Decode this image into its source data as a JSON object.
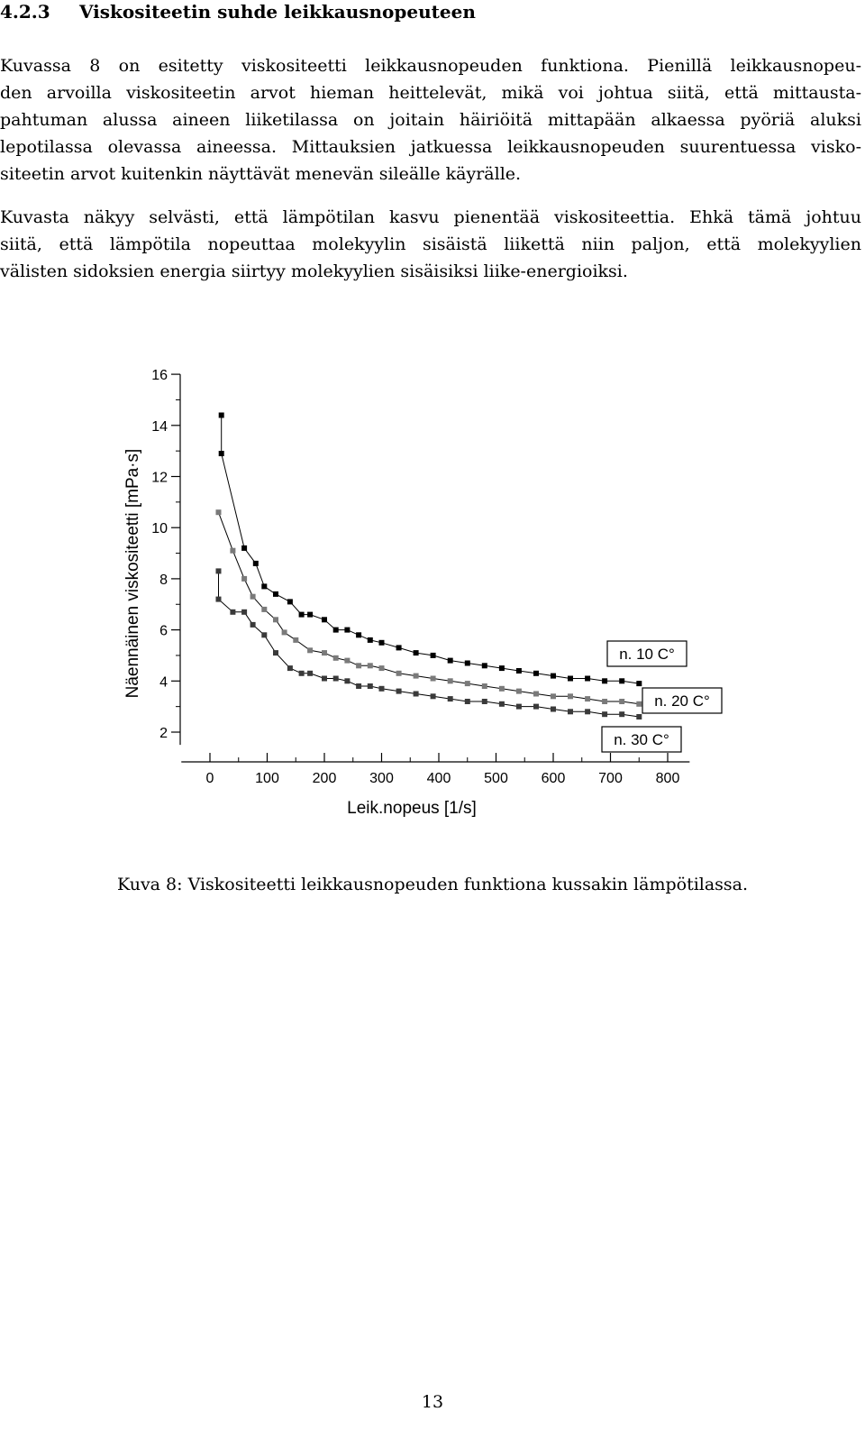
{
  "section": {
    "number": "4.2.3",
    "title": "Viskositeetin suhde leikkausnopeuteen"
  },
  "paragraphs": [
    {
      "lines": [
        "Kuvassa 8 on esitetty viskositeetti leikkausnopeuden funktiona. Pienillä leikkausnopeu-",
        "den arvoilla viskositeetin arvot hieman heittelevät, mikä voi johtua siitä, että mittausta-",
        "pahtuman alussa aineen liiketilassa on joitain häiriöitä mittapään alkaessa pyöriä aluksi",
        "lepotilassa olevassa aineessa. Mittauksien jatkuessa leikkausnopeuden suurentuessa visko-",
        "siteetin arvot kuitenkin näyttävät menevän sileälle käyrälle."
      ]
    },
    {
      "lines": [
        "Kuvasta näkyy selvästi, että lämpötilan kasvu pienentää viskositeettia. Ehkä tämä johtuu",
        "siitä, että lämpötila nopeuttaa molekyylin sisäistä liikettä niin paljon, että molekyylien",
        "välisten sidoksien energia siirtyy molekyylien sisäisiksi liike-energioiksi."
      ]
    }
  ],
  "chart_data": {
    "type": "line",
    "xlabel": "Leik.nopeus [1/s]",
    "ylabel": "Näennäinen viskositeetti [mPa·s]",
    "xlim": [
      -50,
      810
    ],
    "ylim": [
      1.5,
      16
    ],
    "xticks": [
      0,
      100,
      200,
      300,
      400,
      500,
      600,
      700,
      800
    ],
    "yticks": [
      2,
      4,
      6,
      8,
      10,
      12,
      14,
      16
    ],
    "grid": false,
    "legend": "labels placed at the right end of each curve",
    "series": [
      {
        "name": "n. 10 C°",
        "color": "#000000",
        "x": [
          20,
          20,
          60,
          80,
          95,
          115,
          140,
          160,
          175,
          200,
          220,
          240,
          260,
          280,
          300,
          330,
          360,
          390,
          420,
          450,
          480,
          510,
          540,
          570,
          600,
          630,
          660,
          690,
          720,
          750
        ],
        "y": [
          14.4,
          12.9,
          9.2,
          8.6,
          7.7,
          7.4,
          7.1,
          6.6,
          6.6,
          6.4,
          6.0,
          6.0,
          5.8,
          5.6,
          5.5,
          5.3,
          5.1,
          5.0,
          4.8,
          4.7,
          4.6,
          4.5,
          4.4,
          4.3,
          4.2,
          4.1,
          4.1,
          4.0,
          4.0,
          3.9
        ]
      },
      {
        "name": "n. 20 C°",
        "color": "#7a7a7a",
        "x": [
          15,
          40,
          60,
          75,
          95,
          115,
          130,
          150,
          175,
          200,
          220,
          240,
          260,
          280,
          300,
          330,
          360,
          390,
          420,
          450,
          480,
          510,
          540,
          570,
          600,
          630,
          660,
          690,
          720,
          750
        ],
        "y": [
          10.6,
          9.1,
          8.0,
          7.3,
          6.8,
          6.4,
          5.9,
          5.6,
          5.2,
          5.1,
          4.9,
          4.8,
          4.6,
          4.6,
          4.5,
          4.3,
          4.2,
          4.1,
          4.0,
          3.9,
          3.8,
          3.7,
          3.6,
          3.5,
          3.4,
          3.4,
          3.3,
          3.2,
          3.2,
          3.1
        ]
      },
      {
        "name": "n. 30 C°",
        "color": "#3a3a3a",
        "x": [
          15,
          15,
          40,
          60,
          75,
          95,
          115,
          140,
          160,
          175,
          200,
          220,
          240,
          260,
          280,
          300,
          330,
          360,
          390,
          420,
          450,
          480,
          510,
          540,
          570,
          600,
          630,
          660,
          690,
          720,
          750
        ],
        "y": [
          8.3,
          7.2,
          6.7,
          6.7,
          6.2,
          5.8,
          5.1,
          4.5,
          4.3,
          4.3,
          4.1,
          4.1,
          4.0,
          3.8,
          3.8,
          3.7,
          3.6,
          3.5,
          3.4,
          3.3,
          3.2,
          3.2,
          3.1,
          3.0,
          3.0,
          2.9,
          2.8,
          2.8,
          2.7,
          2.7,
          2.6
        ]
      }
    ]
  },
  "caption": "Kuva 8: Viskositeetti leikkausnopeuden funktiona kussakin lämpötilassa.",
  "page_number": "13"
}
